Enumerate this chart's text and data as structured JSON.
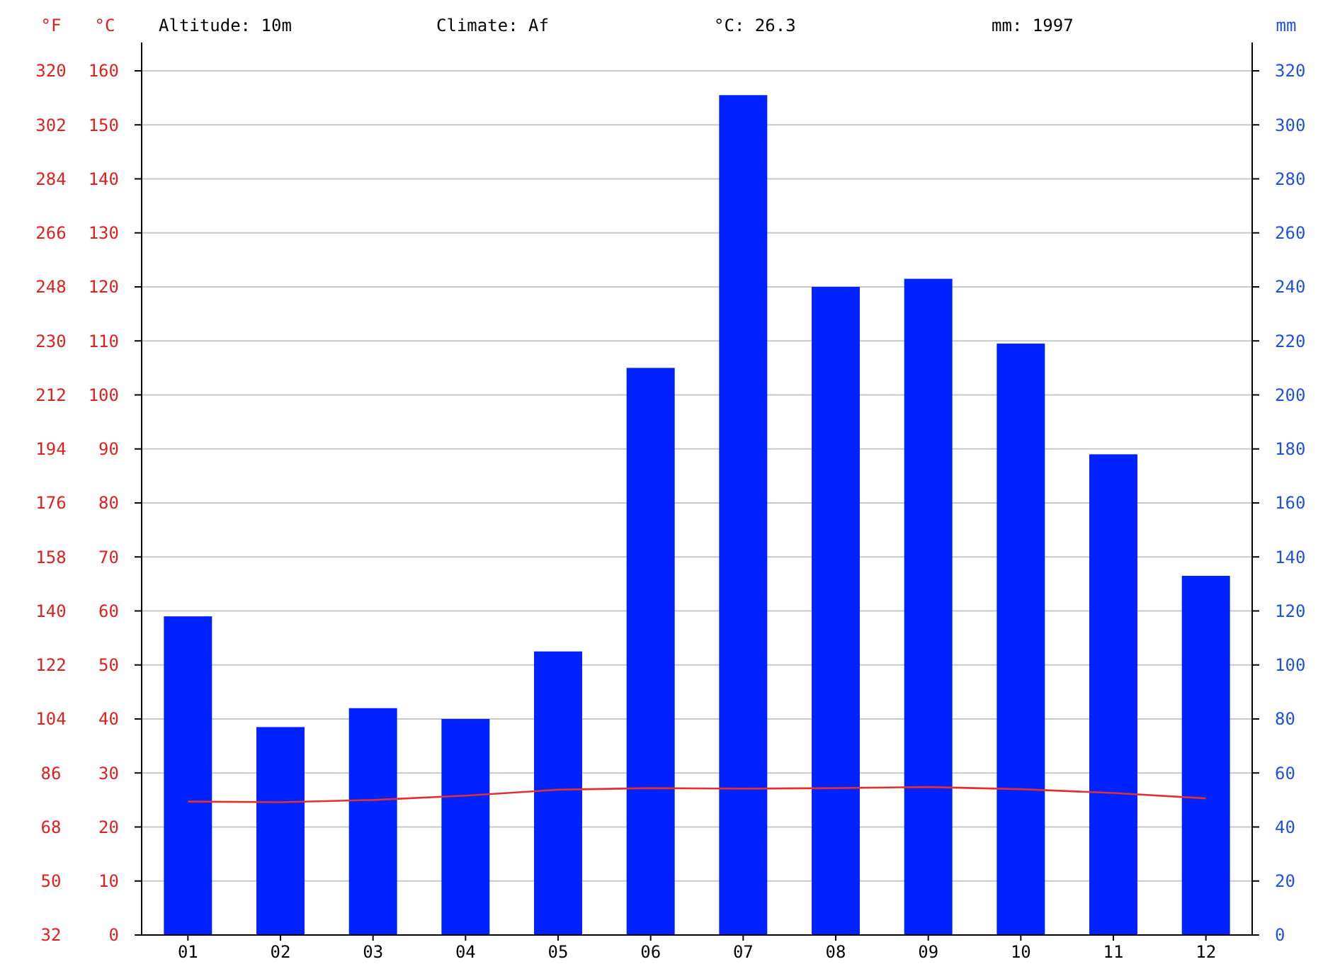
{
  "chart_data": {
    "type": "bar",
    "annotations": [
      "Altitude: 10m",
      "Climate: Af",
      "°C: 26.3",
      "mm: 1997"
    ],
    "ylabel": "°C",
    "y2label": "mm",
    "y3label": "°F",
    "categories": [
      "01",
      "02",
      "03",
      "04",
      "05",
      "06",
      "07",
      "08",
      "09",
      "10",
      "11",
      "12"
    ],
    "series": [
      {
        "axis": "y2",
        "color": "#0022ff",
        "values": [
          118,
          77,
          84,
          80,
          105,
          210,
          311,
          240,
          243,
          219,
          178,
          133
        ]
      },
      {
        "type": "line",
        "axis": "y",
        "color": "#e03030",
        "values": [
          24.7,
          24.6,
          25,
          25.8,
          26.9,
          27.2,
          27.1,
          27.2,
          27.4,
          27,
          26.3,
          25.3
        ]
      }
    ],
    "ylim": [
      0,
      160
    ],
    "yticks": [
      0,
      10,
      20,
      30,
      40,
      50,
      60,
      70,
      80,
      90,
      100,
      110,
      120,
      130,
      140,
      150,
      160
    ],
    "y2lim": [
      0,
      320
    ],
    "y2ticks": [
      0,
      20,
      40,
      60,
      80,
      100,
      120,
      140,
      160,
      180,
      200,
      220,
      240,
      260,
      280,
      300,
      320
    ],
    "y3lim": [
      32,
      320
    ],
    "y3ticks": [
      32,
      50,
      68,
      86,
      104,
      122,
      140,
      158,
      176,
      194,
      212,
      230,
      248,
      266,
      284,
      302,
      320
    ],
    "grid": "y"
  }
}
